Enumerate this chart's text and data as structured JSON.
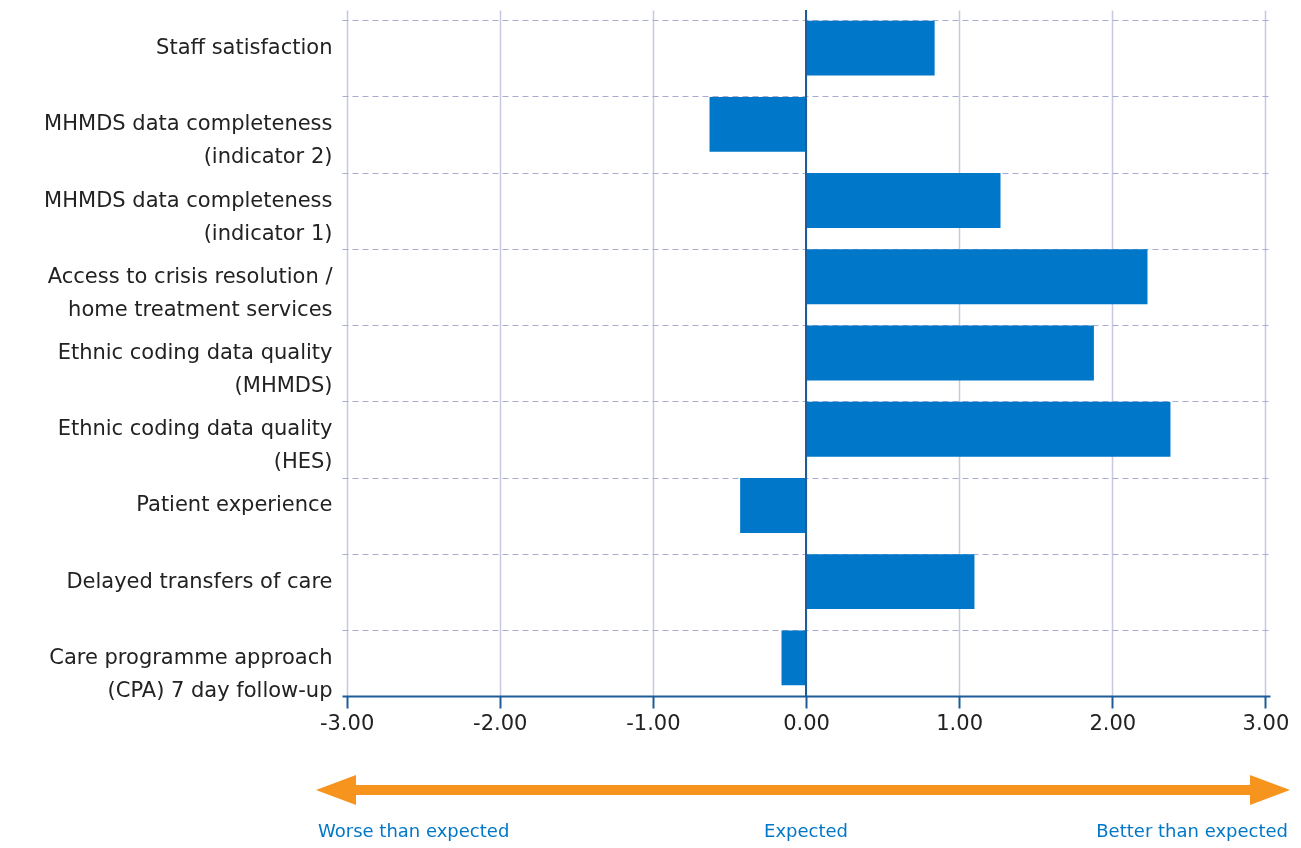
{
  "chart_data": {
    "type": "bar",
    "orientation": "horizontal",
    "categories": [
      "Staff satisfaction",
      "MHMDS data completeness\n(indicator 2)",
      "MHMDS data completeness\n(indicator 1)",
      "Access to crisis resolution /\nhome treatment services",
      "Ethnic coding data quality\n(MHMDS)",
      "Ethnic coding data quality\n(HES)",
      "Patient experience",
      "Delayed transfers of care",
      "Care programme approach\n(CPA) 7 day follow-up"
    ],
    "values": [
      0.84,
      -0.63,
      1.27,
      2.23,
      1.88,
      2.38,
      -0.43,
      1.1,
      -0.16
    ],
    "color": "#0077c8",
    "xlim": [
      -3.03,
      3.03
    ],
    "xticks": [
      {
        "value": -3,
        "label": "-3.00"
      },
      {
        "value": -2,
        "label": "-2.00"
      },
      {
        "value": -1,
        "label": "-1.00"
      },
      {
        "value": 0,
        "label": "0.00"
      },
      {
        "value": 1,
        "label": "1.00"
      },
      {
        "value": 2,
        "label": "2.00"
      },
      {
        "value": 3,
        "label": "3.00"
      }
    ],
    "grid": true,
    "ref_lines": [
      {
        "axis": "x",
        "value": 0,
        "color": "#1d5c99"
      }
    ],
    "annotations": [
      "Worse than expected",
      "Expected",
      "Better than expected"
    ]
  }
}
